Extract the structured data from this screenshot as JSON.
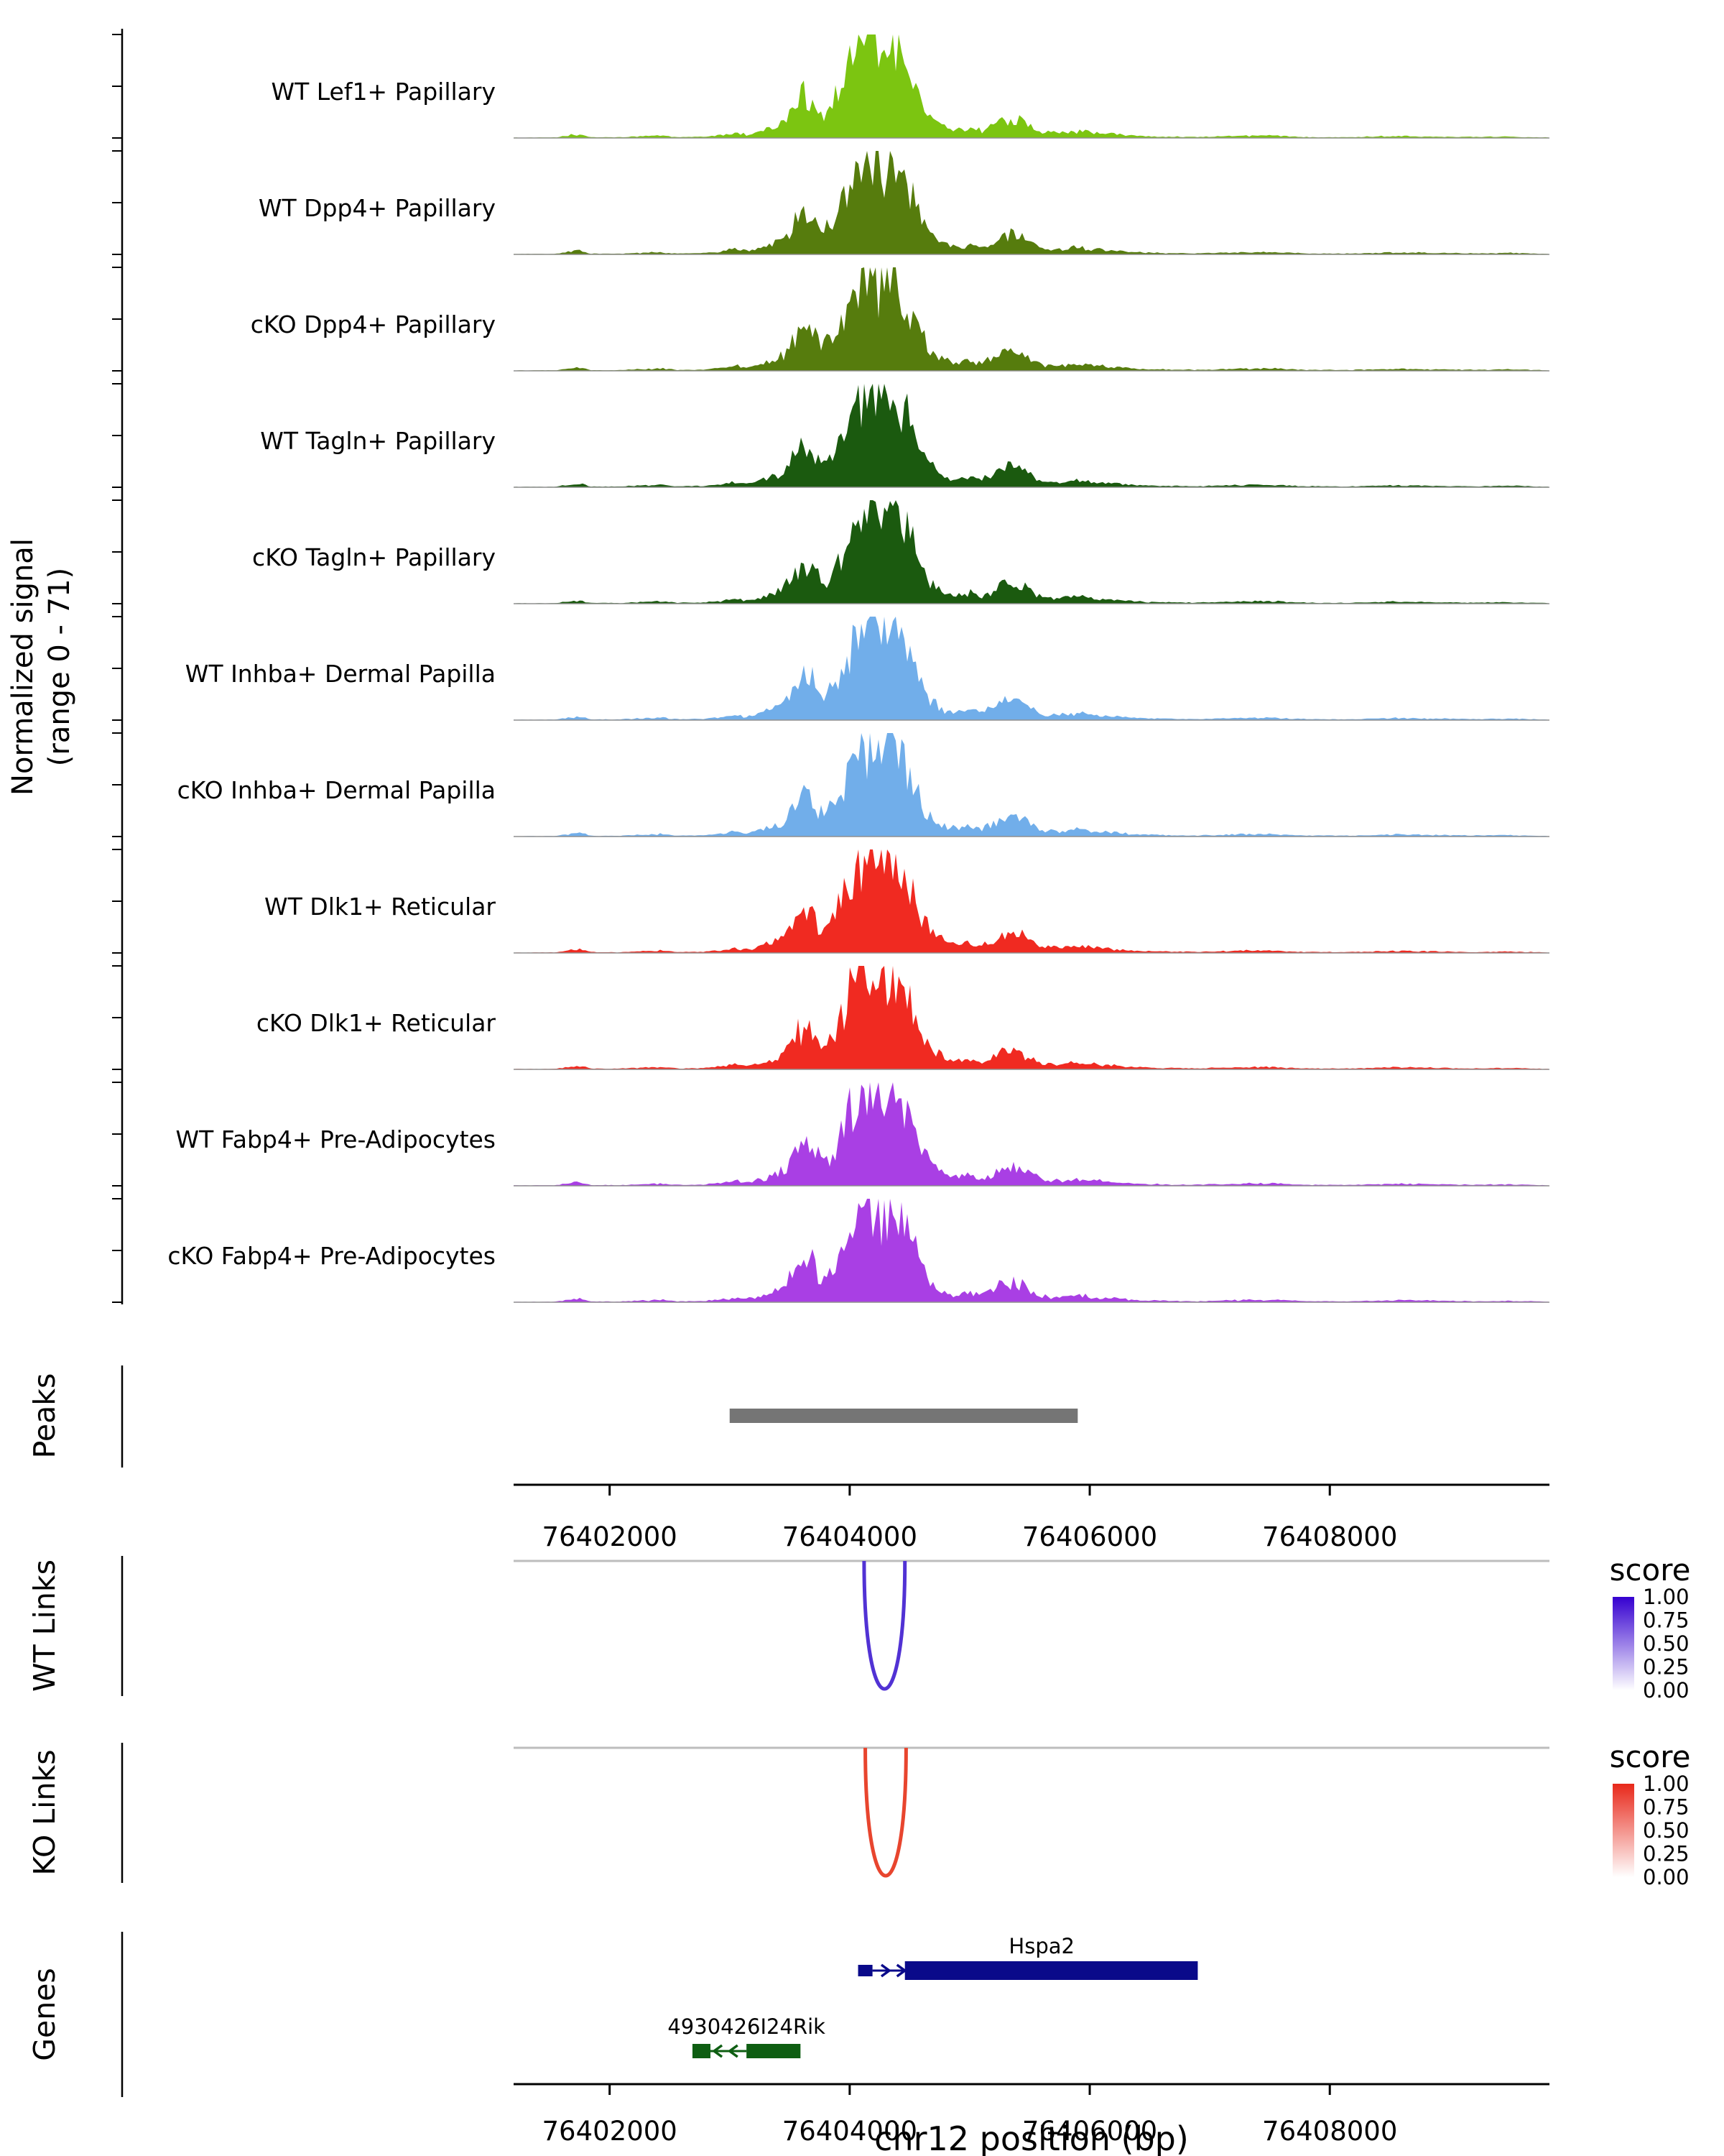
{
  "y_axis": {
    "line1": "Normalized signal",
    "line2": "(range 0 - 71)"
  },
  "axis": {
    "tick_values": [
      76402000,
      76404000,
      76406000,
      76408000
    ],
    "tick_labels": [
      "76402000",
      "76404000",
      "76406000",
      "76408000"
    ],
    "xlabel": "chr12 position (bp)"
  },
  "chart_data": {
    "type": "area",
    "title": "",
    "x_unit": "bp (chr12)",
    "xlim": [
      76401200,
      76409830
    ],
    "ylabel": "Normalized signal (range 0 - 71)",
    "y_range": [
      0,
      71
    ],
    "tracks": [
      {
        "label": "WT Lef1+ Papillary",
        "color": "#7cc511"
      },
      {
        "label": "WT Dpp4+ Papillary",
        "color": "#567c0d"
      },
      {
        "label": "cKO Dpp4+ Papillary",
        "color": "#567c0d"
      },
      {
        "label": "WT Tagln+ Papillary",
        "color": "#1b5a0f"
      },
      {
        "label": "cKO Tagln+ Papillary",
        "color": "#1b5a0f"
      },
      {
        "label": "WT Inhba+ Dermal Papilla",
        "color": "#71aeea"
      },
      {
        "label": "cKO Inhba+ Dermal Papilla",
        "color": "#71aeea"
      },
      {
        "label": "WT Dlk1+ Reticular",
        "color": "#f02a21"
      },
      {
        "label": "cKO Dlk1+ Reticular",
        "color": "#f02a21"
      },
      {
        "label": "WT Fabp4+ Pre-Adipocytes",
        "color": "#a93fe4"
      },
      {
        "label": "cKO Fabp4+ Pre-Adipocytes",
        "color": "#a93fe4"
      }
    ],
    "signal_profile": [
      [
        76401200,
        0.004
      ],
      [
        76401550,
        0.005
      ],
      [
        76401680,
        0.028
      ],
      [
        76401760,
        0.034
      ],
      [
        76401840,
        0.008
      ],
      [
        76402050,
        0.006
      ],
      [
        76402300,
        0.018
      ],
      [
        76402430,
        0.024
      ],
      [
        76402560,
        0.009
      ],
      [
        76402780,
        0.012
      ],
      [
        76402930,
        0.028
      ],
      [
        76403040,
        0.05
      ],
      [
        76403140,
        0.032
      ],
      [
        76403240,
        0.058
      ],
      [
        76403340,
        0.096
      ],
      [
        76403440,
        0.15
      ],
      [
        76403540,
        0.3
      ],
      [
        76403610,
        0.44
      ],
      [
        76403690,
        0.36
      ],
      [
        76403770,
        0.22
      ],
      [
        76403850,
        0.3
      ],
      [
        76403940,
        0.52
      ],
      [
        76404030,
        0.78
      ],
      [
        76404110,
        0.92
      ],
      [
        76404200,
        1.0
      ],
      [
        76404280,
        0.86
      ],
      [
        76404360,
        0.94
      ],
      [
        76404440,
        0.76
      ],
      [
        76404520,
        0.58
      ],
      [
        76404600,
        0.34
      ],
      [
        76404700,
        0.17
      ],
      [
        76404800,
        0.1
      ],
      [
        76404900,
        0.08
      ],
      [
        76405000,
        0.1
      ],
      [
        76405100,
        0.07
      ],
      [
        76405200,
        0.12
      ],
      [
        76405290,
        0.2
      ],
      [
        76405390,
        0.18
      ],
      [
        76405490,
        0.14
      ],
      [
        76405590,
        0.06
      ],
      [
        76405740,
        0.05
      ],
      [
        76405890,
        0.068
      ],
      [
        76406040,
        0.05
      ],
      [
        76406200,
        0.038
      ],
      [
        76406400,
        0.02
      ],
      [
        76406620,
        0.014
      ],
      [
        76406900,
        0.01
      ],
      [
        76407200,
        0.02
      ],
      [
        76407480,
        0.024
      ],
      [
        76407800,
        0.01
      ],
      [
        76408150,
        0.008
      ],
      [
        76408550,
        0.02
      ],
      [
        76408900,
        0.014
      ],
      [
        76409200,
        0.01
      ],
      [
        76409500,
        0.014
      ],
      [
        76409830,
        0.005
      ]
    ]
  },
  "peaks": {
    "label": "Peaks",
    "color": "#757575",
    "intervals": [
      {
        "start": 76403000,
        "end": 76405900
      }
    ]
  },
  "wt_links": {
    "label": "WT Links",
    "line_color": "#bdbdbd",
    "arcs": [
      {
        "start": 76404120,
        "end": 76404460,
        "color": "#5132d4"
      }
    ],
    "legend": {
      "title": "score",
      "tick_labels": [
        "1.00",
        "0.75",
        "0.50",
        "0.25",
        "0.00"
      ],
      "color_high": "#3500d0",
      "color_low": "#ffffff"
    }
  },
  "ko_links": {
    "label": "KO Links",
    "line_color": "#bdbdbd",
    "arcs": [
      {
        "start": 76404130,
        "end": 76404470,
        "color": "#e8452e"
      }
    ],
    "legend": {
      "title": "score",
      "tick_labels": [
        "1.00",
        "0.75",
        "0.50",
        "0.25",
        "0.00"
      ],
      "color_high": "#e8281a",
      "color_low": "#ffffff"
    }
  },
  "genes": {
    "label": "Genes",
    "items": [
      {
        "name": "Hspa2",
        "color": "#0a0a8a",
        "strand": "+",
        "row": 0,
        "label_bp": 76405600,
        "segments": [
          {
            "type": "box",
            "start": 76404070,
            "end": 76404190,
            "h": 16
          },
          {
            "type": "line",
            "start": 76404190,
            "end": 76404460
          },
          {
            "type": "box",
            "start": 76404460,
            "end": 76406900,
            "h": 26
          }
        ],
        "arrows": [
          76404300,
          76404430
        ]
      },
      {
        "name": "4930426I24Rik",
        "color": "#0e5e12",
        "strand": "-",
        "row": 1,
        "label_bp": 76403140,
        "segments": [
          {
            "type": "box",
            "start": 76402690,
            "end": 76402840,
            "h": 20
          },
          {
            "type": "line",
            "start": 76402840,
            "end": 76403140
          },
          {
            "type": "box",
            "start": 76403140,
            "end": 76403590,
            "h": 20
          }
        ],
        "arrows": [
          76402900,
          76403030
        ]
      }
    ]
  }
}
